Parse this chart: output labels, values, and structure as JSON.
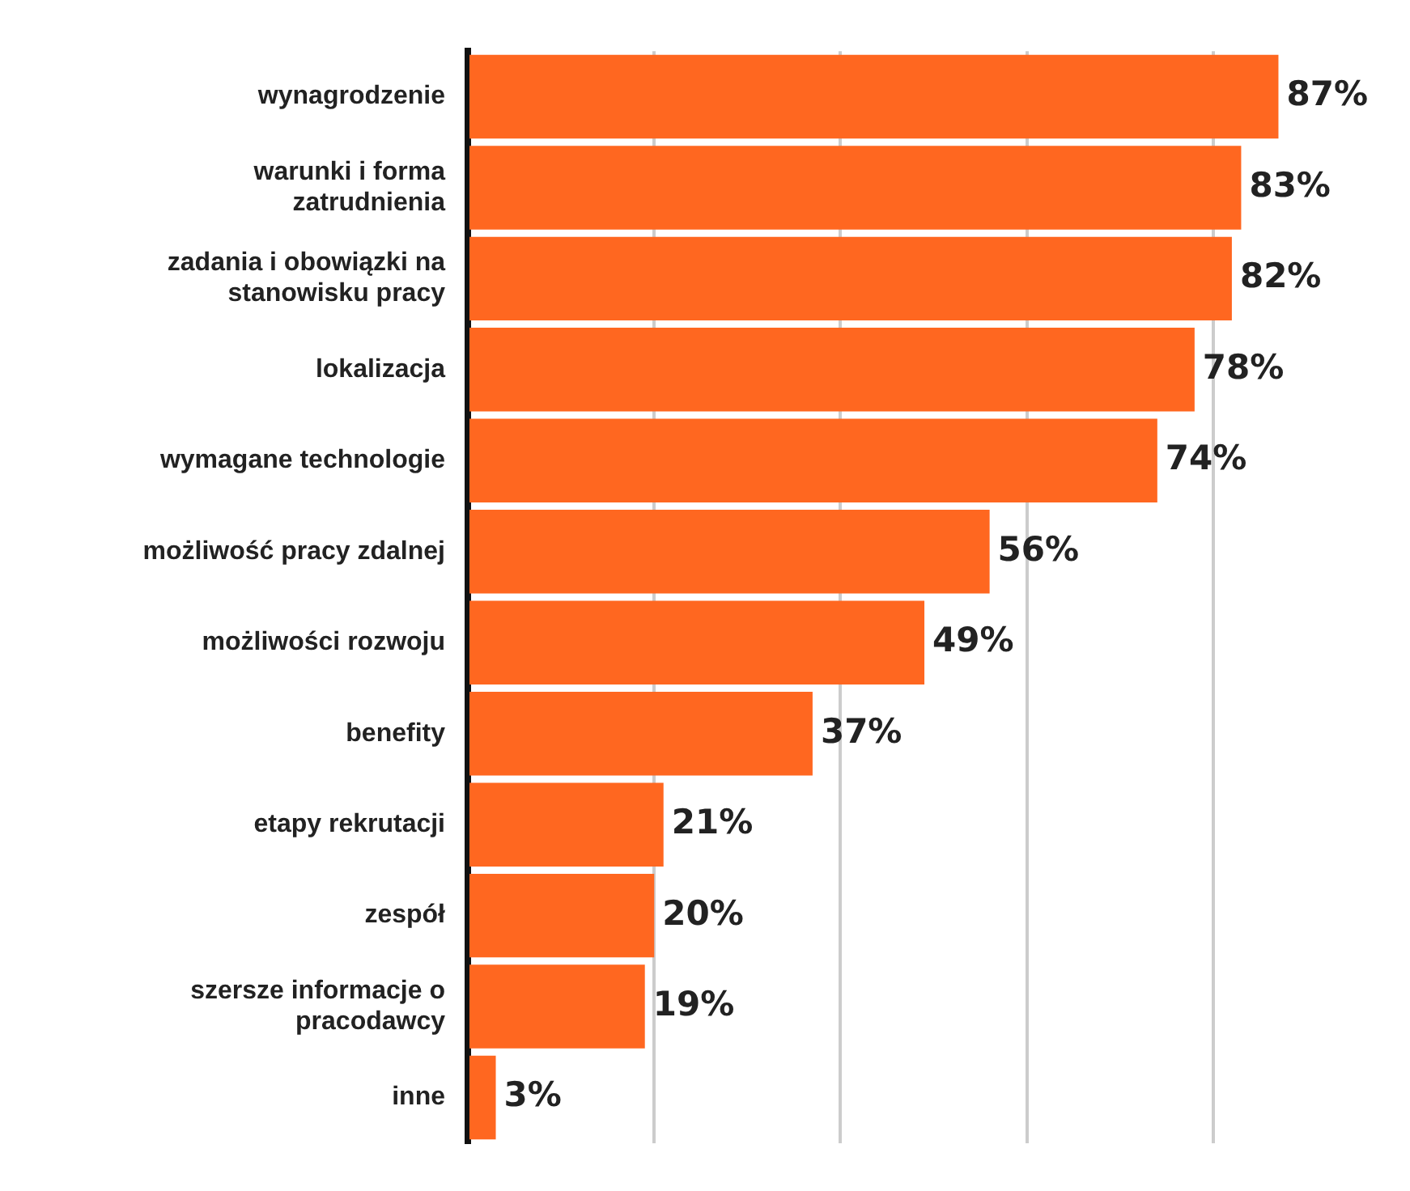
{
  "chart_data": {
    "type": "bar",
    "orientation": "horizontal",
    "categories": [
      "wynagrodzenie",
      "warunki i forma zatrudnienia",
      "zadania i obowiązki na stanowisku pracy",
      "lokalizacja",
      "wymagane technologie",
      "możliwość pracy zdalnej",
      "możliwości rozwoju",
      "benefity",
      "etapy rekrutacji",
      "zespół",
      "szersze informacje o pracodawcy",
      "inne"
    ],
    "values": [
      87,
      83,
      82,
      78,
      74,
      56,
      49,
      37,
      21,
      20,
      19,
      3
    ],
    "value_labels": [
      "87%",
      "83%",
      "82%",
      "78%",
      "74%",
      "56%",
      "49%",
      "37%",
      "21%",
      "20%",
      "19%",
      "3%"
    ],
    "color": "#ff6720",
    "xticks": [
      {
        "value": 0,
        "label": null
      },
      {
        "value": 20,
        "label": null
      },
      {
        "value": 40,
        "label": null
      },
      {
        "value": 60,
        "label": null
      },
      {
        "value": 80,
        "label": null
      }
    ],
    "grid": "x",
    "legend": false
  }
}
